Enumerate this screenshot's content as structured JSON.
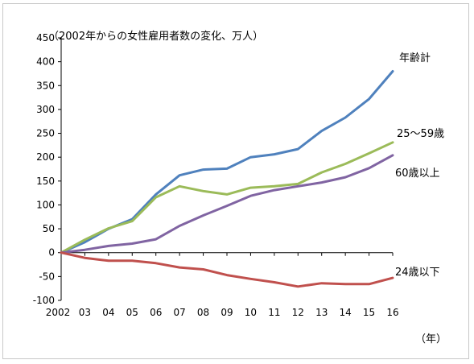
{
  "chart_data": {
    "type": "line",
    "title": "（2002年からの女性雇用者数の変化、万人）",
    "xlabel": "（年）",
    "ylabel": "",
    "x": [
      "2002",
      "03",
      "04",
      "05",
      "06",
      "07",
      "08",
      "09",
      "10",
      "11",
      "12",
      "13",
      "14",
      "15",
      "16"
    ],
    "ylim": [
      -100,
      450
    ],
    "yticks": [
      -100,
      -50,
      0,
      50,
      100,
      150,
      200,
      250,
      300,
      350,
      400,
      450
    ],
    "grid": false,
    "legend": "direct-labels",
    "series": [
      {
        "name": "年齢計",
        "color": "#4F81BD",
        "values": [
          0,
          22,
          50,
          70,
          122,
          162,
          174,
          176,
          200,
          206,
          217,
          255,
          283,
          322,
          380
        ]
      },
      {
        "name": "25～59歳",
        "color": "#9BBB59",
        "values": [
          0,
          27,
          51,
          66,
          116,
          139,
          129,
          122,
          136,
          139,
          144,
          168,
          186,
          208,
          231
        ]
      },
      {
        "name": "60歳以上",
        "color": "#8064A2",
        "values": [
          0,
          6,
          14,
          19,
          28,
          56,
          78,
          98,
          119,
          131,
          139,
          147,
          158,
          177,
          204
        ]
      },
      {
        "name": "24歳以下",
        "color": "#C0504D",
        "values": [
          0,
          -11,
          -17,
          -17,
          -22,
          -31,
          -35,
          -47,
          -55,
          -62,
          -71,
          -64,
          -66,
          -66,
          -53
        ]
      }
    ]
  }
}
